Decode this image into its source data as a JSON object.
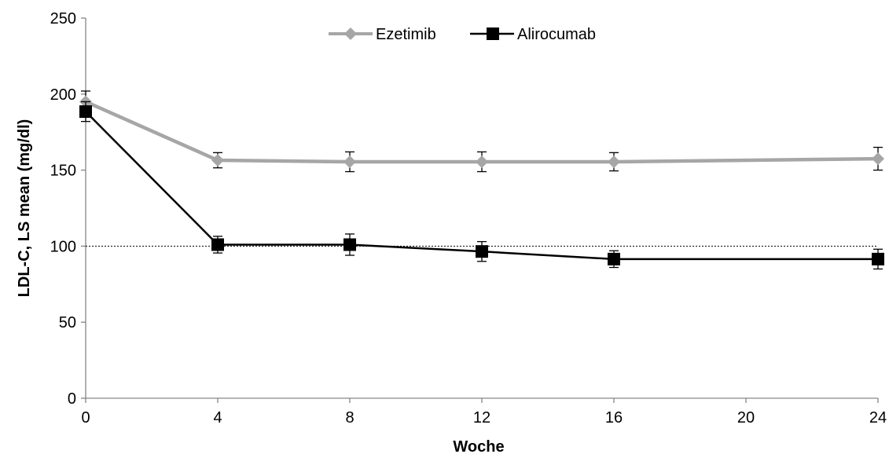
{
  "chart_data": {
    "type": "line",
    "title": "",
    "xlabel": "Woche",
    "ylabel": "LDL-C, LS mean (mg/dl)",
    "x_ticks": [
      "0",
      "4",
      "8",
      "12",
      "16",
      "20",
      "24"
    ],
    "y_ticks": [
      "0",
      "50",
      "100",
      "150",
      "200",
      "250"
    ],
    "xlim": [
      0,
      24
    ],
    "ylim": [
      0,
      250
    ],
    "grid": false,
    "legend_position": "top-center",
    "reference_line": {
      "y": 100,
      "style": "dotted"
    },
    "series": [
      {
        "name": "Ezetimib",
        "color": "#A6A6A6",
        "marker": "diamond",
        "x": [
          0,
          4,
          8,
          12,
          16,
          24
        ],
        "y": [
          195,
          156.5,
          155.5,
          155.5,
          155.5,
          157.5
        ],
        "error": [
          7,
          5,
          6.5,
          6.5,
          6,
          7.5
        ]
      },
      {
        "name": "Alirocumab",
        "color": "#000000",
        "marker": "square",
        "x": [
          0,
          4,
          8,
          12,
          16,
          24
        ],
        "y": [
          188.5,
          101,
          101,
          96.5,
          91.5,
          91.5
        ],
        "error": [
          6.5,
          5.5,
          7,
          6.5,
          5.5,
          6.5
        ]
      }
    ]
  }
}
